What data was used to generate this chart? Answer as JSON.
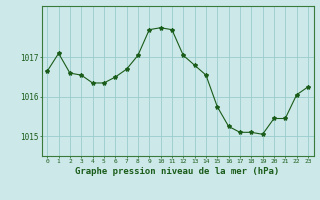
{
  "x": [
    0,
    1,
    2,
    3,
    4,
    5,
    6,
    7,
    8,
    9,
    10,
    11,
    12,
    13,
    14,
    15,
    16,
    17,
    18,
    19,
    20,
    21,
    22,
    23
  ],
  "y": [
    1016.65,
    1017.1,
    1016.6,
    1016.55,
    1016.35,
    1016.35,
    1016.5,
    1016.7,
    1017.05,
    1017.7,
    1017.75,
    1017.7,
    1017.05,
    1016.8,
    1016.55,
    1015.75,
    1015.25,
    1015.1,
    1015.1,
    1015.05,
    1015.45,
    1015.45,
    1016.05,
    1016.25
  ],
  "line_color": "#1a5c1a",
  "marker": "*",
  "marker_size": 3,
  "bg_color": "#cce8e8",
  "grid_color": "#99cccc",
  "tick_color": "#1a5c1a",
  "xlabel": "Graphe pression niveau de la mer (hPa)",
  "xlabel_fontsize": 6.5,
  "ytick_labels": [
    "1015",
    "1016",
    "1017"
  ],
  "ytick_values": [
    1015,
    1016,
    1017
  ],
  "ylim": [
    1014.5,
    1018.3
  ],
  "xlim": [
    -0.5,
    23.5
  ],
  "spine_color": "#3a7a3a"
}
